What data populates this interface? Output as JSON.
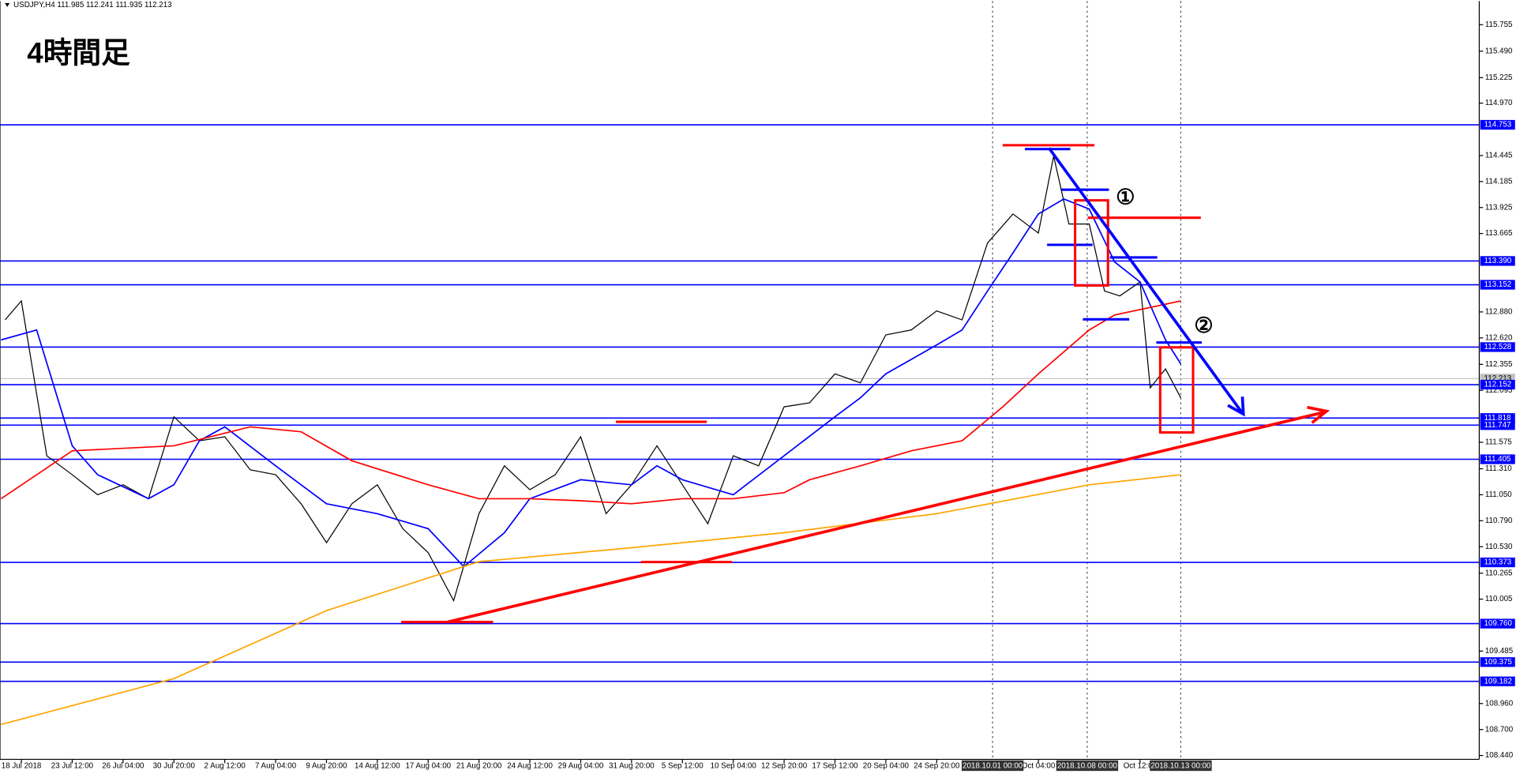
{
  "chart_data": {
    "type": "line",
    "header": "USDJPY,H4  111.985 112.241 111.935 112.213",
    "title": "4時間足",
    "annotations": [
      "①",
      "②"
    ],
    "xlim": [
      -0.42,
      28.67
    ],
    "ylim": [
      108.266,
      115.991
    ],
    "categories": [
      "18 Jul 2018",
      "23 Jul 12:00",
      "26 Jul 04:00",
      "30 Jul 20:00",
      "2 Aug 12:00",
      "7 Aug 04:00",
      "9 Aug 20:00",
      "14 Aug 12:00",
      "17 Aug 04:00",
      "21 Aug 20:00",
      "24 Aug 12:00",
      "29 Aug 04:00",
      "31 Aug 20:00",
      "5 Sep 12:00",
      "10 Sep 04:00",
      "12 Sep 20:00",
      "17 Sep 12:00",
      "20 Sep 04:00",
      "24 Sep 20:00",
      null,
      "Oct 04:00",
      null,
      "Oct 12:00"
    ],
    "markers": [
      {
        "x": 19.1,
        "label": "2018.10.01 00:00"
      },
      {
        "x": 20.96,
        "label": "2018.10.08 00:00"
      },
      {
        "x": 22.8,
        "label": "2018.10.13 00:00"
      }
    ],
    "yticks": [
      115.755,
      {
        "value": 115.49,
        "label": "115.490"
      },
      115.225,
      {
        "value": 114.97,
        "label": "114.970"
      },
      114.445,
      114.185,
      113.925,
      113.665,
      {
        "value": 112.88,
        "label": "112.880"
      },
      {
        "value": 112.62,
        "label": "112.620"
      },
      112.355,
      112.095,
      111.575,
      {
        "value": 111.31,
        "label": "111.310"
      },
      {
        "value": 111.05,
        "label": "111.050"
      },
      {
        "value": 110.79,
        "label": "110.790"
      },
      {
        "value": 110.53,
        "label": "110.530"
      },
      110.265,
      110.005,
      109.485,
      {
        "value": 108.96,
        "label": "108.960"
      },
      {
        "value": 108.7,
        "label": "108.700"
      },
      {
        "value": 108.44,
        "label": "108.440"
      }
    ],
    "levels": [
      114.753,
      113.39,
      113.152,
      112.528,
      112.152,
      111.818,
      111.747,
      111.405,
      110.373,
      {
        "value": 109.76,
        "label": "109.760"
      },
      109.375,
      109.182
    ],
    "level_labels": [
      "114.753",
      "113.390",
      "113.152",
      "112.528",
      "112.152",
      "111.818",
      "111.747",
      "111.405",
      "110.373",
      "109.760",
      "109.375",
      "109.182"
    ],
    "level_color": "#0000ff",
    "last": 112.213,
    "series": [
      {
        "color": "#000000",
        "x": [
          -0.32,
          0,
          0.5,
          1,
          1.5,
          2,
          2.5,
          3,
          3.5,
          4,
          4.5,
          5,
          5.5,
          6,
          6.5,
          7,
          7.5,
          8,
          8.5,
          9,
          9.5,
          10,
          10.5,
          11,
          11.5,
          12,
          12.5,
          13,
          13.5,
          14,
          14.5,
          15,
          15.5,
          16,
          16.5,
          17,
          17.5,
          18,
          18.5,
          19,
          19.5,
          20,
          20.3,
          20.6,
          21,
          21.3,
          21.6,
          22,
          22.2,
          22.5,
          22.8
        ],
        "values": [
          112.8,
          112.99,
          111.44,
          111.25,
          111.05,
          111.15,
          111.01,
          111.83,
          111.59,
          111.63,
          111.3,
          111.25,
          110.96,
          110.57,
          110.96,
          111.15,
          110.71,
          110.47,
          109.99,
          110.86,
          111.34,
          111.1,
          111.25,
          111.63,
          110.86,
          111.15,
          111.54,
          111.15,
          110.76,
          111.44,
          111.34,
          111.93,
          111.97,
          112.26,
          112.17,
          112.65,
          112.7,
          112.89,
          112.8,
          113.57,
          113.86,
          113.67,
          114.44,
          113.76,
          113.76,
          113.09,
          113.04,
          113.18,
          112.12,
          112.31,
          112.02
        ]
      },
      {
        "color": "#0000ff",
        "x": [
          -0.4,
          0.3,
          1,
          1.5,
          2.5,
          3,
          3.5,
          4,
          5,
          6,
          7,
          8,
          8.7,
          9.5,
          10,
          11,
          12,
          12.5,
          13,
          14,
          15,
          16,
          16.5,
          17,
          18,
          18.5,
          19,
          19.5,
          20,
          20.5,
          21,
          21.5,
          22,
          22.5,
          22.8
        ],
        "values": [
          112.6,
          112.7,
          111.54,
          111.25,
          111.01,
          111.15,
          111.59,
          111.73,
          111.34,
          110.96,
          110.86,
          110.71,
          110.33,
          110.67,
          111.01,
          111.2,
          111.15,
          111.34,
          111.2,
          111.05,
          111.44,
          111.83,
          112.02,
          112.26,
          112.55,
          112.7,
          113.09,
          113.47,
          113.86,
          114.01,
          113.91,
          113.38,
          113.18,
          112.6,
          112.36
        ]
      },
      {
        "color": "#ff0000",
        "x": [
          -0.4,
          1,
          3,
          4.5,
          5.5,
          6.5,
          8,
          9,
          10,
          11,
          12,
          13,
          14,
          15,
          15.5,
          16.5,
          17.5,
          18.5,
          19.3,
          20,
          21,
          21.5,
          22.8
        ],
        "values": [
          111.01,
          111.49,
          111.54,
          111.73,
          111.68,
          111.39,
          111.15,
          111.01,
          111.01,
          110.99,
          110.96,
          111.01,
          111.01,
          111.07,
          111.2,
          111.34,
          111.49,
          111.59,
          111.93,
          112.26,
          112.7,
          112.85,
          112.99
        ]
      },
      {
        "color": "#ffa500",
        "x": [
          -0.4,
          3,
          6,
          9,
          12,
          15,
          18,
          21,
          22.8
        ],
        "values": [
          108.75,
          109.21,
          109.89,
          110.38,
          110.52,
          110.67,
          110.86,
          111.15,
          111.25
        ]
      }
    ]
  }
}
